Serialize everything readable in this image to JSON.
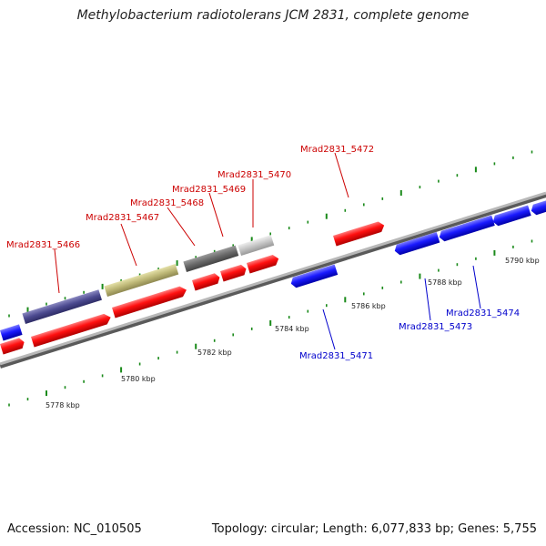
{
  "title": "Methylobacterium radiotolerans JCM 2831, complete genome",
  "footer": {
    "accession": "Accession: NC_010505",
    "summary": "Topology: circular; Length: 6,077,833 bp; Genes: 5,755"
  },
  "colors": {
    "forward_gene": "#ff0000",
    "reverse_gene": "#1a1aff",
    "tick": "#1a8a1a",
    "backbone": "#8c8c8c",
    "label_forward": "#cc0000",
    "label_reverse": "#0000cc"
  },
  "scale_labels": [
    "5778 kbp",
    "5780 kbp",
    "5782 kbp",
    "5784 kbp",
    "5786 kbp",
    "5788 kbp",
    "5790 kbp"
  ],
  "gene_labels": {
    "forward": [
      "Mrad2831_5466",
      "Mrad2831_5467",
      "Mrad2831_5468",
      "Mrad2831_5469",
      "Mrad2831_5470",
      "Mrad2831_5472"
    ],
    "reverse": [
      "Mrad2831_5471",
      "Mrad2831_5473",
      "Mrad2831_5474"
    ]
  }
}
